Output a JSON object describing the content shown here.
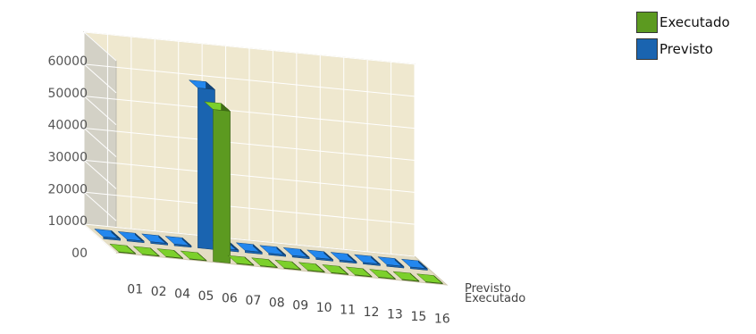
{
  "chart_data": {
    "type": "bar",
    "title": "",
    "xlabel": "",
    "ylabel": "",
    "categories": [
      "01",
      "02",
      "04",
      "05",
      "06",
      "07",
      "08",
      "09",
      "10",
      "11",
      "12",
      "13",
      "15",
      "16"
    ],
    "series": [
      {
        "name": "Previsto",
        "color": "#1a64b0",
        "values": [
          600,
          500,
          500,
          500,
          50000,
          600,
          600,
          500,
          500,
          500,
          500,
          500,
          500,
          500
        ]
      },
      {
        "name": "Executado",
        "color": "#5c9a20",
        "values": [
          150,
          120,
          120,
          120,
          47500,
          150,
          150,
          150,
          150,
          150,
          150,
          150,
          150,
          150
        ]
      }
    ],
    "depth_labels": [
      "Previsto",
      "Executado"
    ],
    "yticks": [
      "00",
      "10000",
      "20000",
      "30000",
      "40000",
      "50000",
      "60000"
    ],
    "ylim": [
      0,
      60000
    ],
    "grid": true,
    "legend_position": "top-right",
    "colors": {
      "wall": "#efe8cf",
      "side_wall": "#d3d1c6",
      "grid": "#ffffff"
    }
  },
  "legend": [
    {
      "label": "Executado",
      "color": "#5c9a20"
    },
    {
      "label": "Previsto",
      "color": "#1a64b0"
    }
  ]
}
